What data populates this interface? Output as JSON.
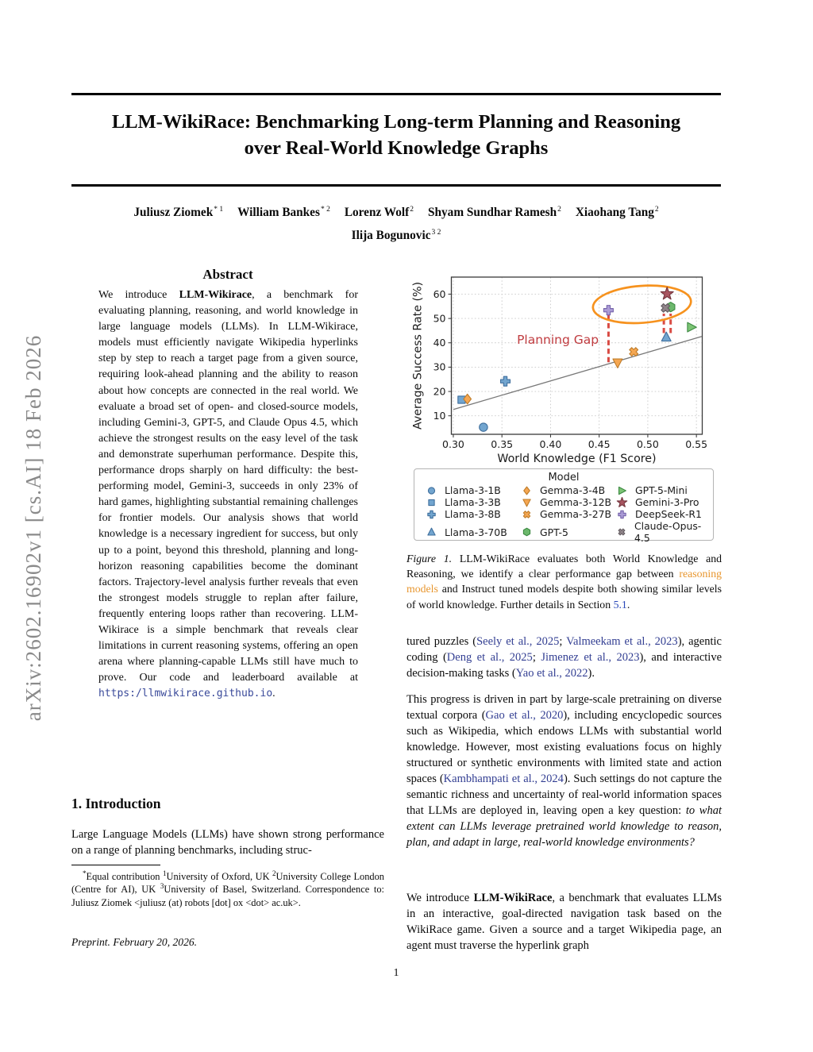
{
  "sidebar": {
    "arxiv_label": "arXiv:2602.16902v1  [cs.AI]  18 Feb 2026"
  },
  "header": {
    "title_line1": "LLM-WikiRace: Benchmarking Long-term Planning and Reasoning",
    "title_line2": "over Real-World Knowledge Graphs",
    "authors_line1": [
      {
        "name": "Juliusz Ziomek",
        "sup": "* 1"
      },
      {
        "name": "William Bankes",
        "sup": "* 2"
      },
      {
        "name": "Lorenz Wolf",
        "sup": "2"
      },
      {
        "name": "Shyam Sundhar Ramesh",
        "sup": "2"
      },
      {
        "name": "Xiaohang Tang",
        "sup": "2"
      }
    ],
    "authors_line2": [
      {
        "name": "Ilija Bogunovic",
        "sup": "3 2"
      }
    ]
  },
  "abstract": {
    "heading": "Abstract",
    "segments": [
      {
        "t": "We introduce "
      },
      {
        "t": "LLM-Wikirace",
        "s": "bold"
      },
      {
        "t": ", a benchmark for evaluating planning, reasoning, and world knowledge in large language models (LLMs). In LLM-Wikirace, models must efficiently navigate Wikipedia hyperlinks step by step to reach a target page from a given source, requiring look-ahead planning and the ability to reason about how concepts are connected in the real world. We evaluate a broad set of open- and closed-source models, including Gemini-3, GPT-5, and Claude Opus 4.5, which achieve the strongest results on the easy level of the task and demonstrate superhuman performance. Despite this, performance drops sharply on hard difficulty: the best-performing model, Gemini-3, succeeds in only 23% of hard games, highlighting substantial remaining challenges for frontier models. Our analysis shows that world knowledge is a necessary ingredient for success, but only up to a point, beyond this threshold, planning and long-horizon reasoning capabilities become the dominant factors. Trajectory-level analysis further reveals that even the strongest models struggle to replan after failure, frequently entering loops rather than recovering. LLM-Wikirace is a simple benchmark that reveals clear limitations in current reasoning systems, offering an open arena where planning-capable LLMs still have much to prove. Our code and leaderboard available at "
      },
      {
        "t": "https:/llmwikirace.github.io",
        "s": "url"
      },
      {
        "t": "."
      }
    ]
  },
  "introduction": {
    "heading": "1. Introduction",
    "segments": [
      {
        "t": "Large Language Models (LLMs) have shown strong performance on a range of planning benchmarks, including struc-"
      }
    ]
  },
  "footnote": {
    "segments": [
      {
        "t": "*",
        "s": "sup"
      },
      {
        "t": "Equal contribution  "
      },
      {
        "t": "1",
        "s": "sup"
      },
      {
        "t": "University of Oxford, UK "
      },
      {
        "t": "2",
        "s": "sup"
      },
      {
        "t": "University College London (Centre for AI), UK "
      },
      {
        "t": "3",
        "s": "sup"
      },
      {
        "t": "University of Basel, Switzerland. Correspondence to: Juliusz Ziomek <juliusz (at) robots [dot] ox <dot> ac.uk>."
      }
    ],
    "preprint": "Preprint. February 20, 2026."
  },
  "figure": {
    "caption_segments": [
      {
        "t": "Figure 1.",
        "s": "italic"
      },
      {
        "t": " LLM-WikiRace evaluates both World Knowledge and Reasoning, we identify a clear performance gap between "
      },
      {
        "t": "reasoning models",
        "s": "orange"
      },
      {
        "t": " and Instruct tuned models despite both showing similar levels of world knowledge. Further details in Section "
      },
      {
        "t": "5.1",
        "s": "bluelink"
      },
      {
        "t": "."
      }
    ]
  },
  "body": {
    "p1": [
      {
        "t": "tured puzzles ("
      },
      {
        "t": "Seely et al., 2025",
        "s": "cite"
      },
      {
        "t": "; "
      },
      {
        "t": "Valmeekam et al., 2023",
        "s": "cite"
      },
      {
        "t": "), agentic coding ("
      },
      {
        "t": "Deng et al., 2025",
        "s": "cite"
      },
      {
        "t": "; "
      },
      {
        "t": "Jimenez et al., 2023",
        "s": "cite"
      },
      {
        "t": "), and interactive decision-making tasks ("
      },
      {
        "t": "Yao et al., 2022",
        "s": "cite"
      },
      {
        "t": ")."
      }
    ],
    "p2": [
      {
        "t": "This progress is driven in part by large-scale pretraining on diverse textual corpora ("
      },
      {
        "t": "Gao et al., 2020",
        "s": "cite"
      },
      {
        "t": "), including encyclopedic sources such as Wikipedia, which endows LLMs with substantial world knowledge.  However, most existing evaluations focus on highly structured or synthetic environments with limited state and action spaces ("
      },
      {
        "t": "Kambhampati et al., 2024",
        "s": "cite"
      },
      {
        "t": "). Such settings do not capture the semantic richness and uncertainty of real-world information spaces that LLMs are deployed in, leaving open a key question: "
      },
      {
        "t": "to what extent can LLMs leverage pretrained world knowledge to reason, plan, and adapt in large, real-world knowledge environments?",
        "s": "italic"
      }
    ],
    "p3": [
      {
        "t": "We introduce "
      },
      {
        "t": "LLM-WikiRace",
        "s": "bold"
      },
      {
        "t": ", a benchmark that evaluates LLMs in an interactive, goal-directed navigation task based on the WikiRace game. Given a source and a target Wikipedia page, an agent must traverse the hyperlink graph"
      }
    ]
  },
  "footer": {
    "page_number": "1"
  },
  "chart_data": {
    "type": "scatter",
    "xlabel": "World Knowledge (F1 Score)",
    "ylabel": "Average Success Rate (%)",
    "xlim": [
      0.298,
      0.556
    ],
    "ylim": [
      2.4,
      67
    ],
    "xticks": [
      0.3,
      0.35,
      0.4,
      0.45,
      0.5,
      0.55
    ],
    "yticks": [
      10,
      20,
      30,
      40,
      50,
      60
    ],
    "grid": true,
    "legend_title": "Model",
    "legend_position": "below",
    "points": [
      {
        "name": "Llama-3-1B",
        "marker": "circle",
        "x": 0.331,
        "y": 5.3,
        "color": "#72a5cf",
        "edge": "#3f6f9d"
      },
      {
        "name": "Llama-3-3B",
        "marker": "square",
        "x": 0.3085,
        "y": 16.6,
        "color": "#72a5cf",
        "edge": "#3f6f9d"
      },
      {
        "name": "Llama-3-8B",
        "marker": "plus",
        "x": 0.3535,
        "y": 24.2,
        "color": "#72a5cf",
        "edge": "#3f6f9d"
      },
      {
        "name": "Llama-3-70B",
        "marker": "triangle-up",
        "x": 0.519,
        "y": 42.4,
        "color": "#72a5cf",
        "edge": "#3f6f9d"
      },
      {
        "name": "Gemma-3-4B",
        "marker": "diamond",
        "x": 0.3145,
        "y": 16.9,
        "color": "#f5a752",
        "edge": "#bf7c2a"
      },
      {
        "name": "Gemma-3-12B",
        "marker": "triangle-down",
        "x": 0.469,
        "y": 31.7,
        "color": "#f5a752",
        "edge": "#bf7c2a"
      },
      {
        "name": "Gemma-3-27B",
        "marker": "x-filled",
        "x": 0.4855,
        "y": 36.3,
        "color": "#f5a752",
        "edge": "#bf7c2a"
      },
      {
        "name": "GPT-5",
        "marker": "hexagon",
        "x": 0.5235,
        "y": 54.7,
        "color": "#6cb86c",
        "edge": "#3d8a43"
      },
      {
        "name": "GPT-5-Mini",
        "marker": "triangle-right",
        "x": 0.545,
        "y": 46.4,
        "color": "#7cc474",
        "edge": "#3d8a43"
      },
      {
        "name": "Gemini-3-Pro",
        "marker": "star",
        "x": 0.5198,
        "y": 60.1,
        "color": "#a85560",
        "edge": "#73343c"
      },
      {
        "name": "DeepSeek-R1",
        "marker": "plus",
        "x": 0.4596,
        "y": 53.4,
        "color": "#ab9cd6",
        "edge": "#7664ab"
      },
      {
        "name": "Claude-Opus-4.5",
        "marker": "x-filled",
        "x": 0.5182,
        "y": 54.3,
        "color": "#8f8489",
        "edge": "#615a5f"
      }
    ],
    "trend_line": {
      "x1": 0.3,
      "y1": 12.6,
      "x2": 0.5555,
      "y2": 42.6,
      "color": "#787878"
    },
    "gap_lines": [
      {
        "x": 0.4596,
        "y1": 32.0,
        "y2": 51.5
      },
      {
        "x": 0.5165,
        "y1": 44.0,
        "y2": 52.0
      },
      {
        "x": 0.5235,
        "y1": 44.0,
        "y2": 52.0
      }
    ],
    "ellipse": {
      "cx": 0.494,
      "cy": 55.8,
      "rx": 0.0505,
      "ry": 7.6,
      "rotation": -4,
      "color": "#f6921e"
    },
    "annotation": {
      "text": "Planning Gap",
      "x": 0.4075,
      "y": 41.2,
      "color": "#c03c40"
    }
  }
}
